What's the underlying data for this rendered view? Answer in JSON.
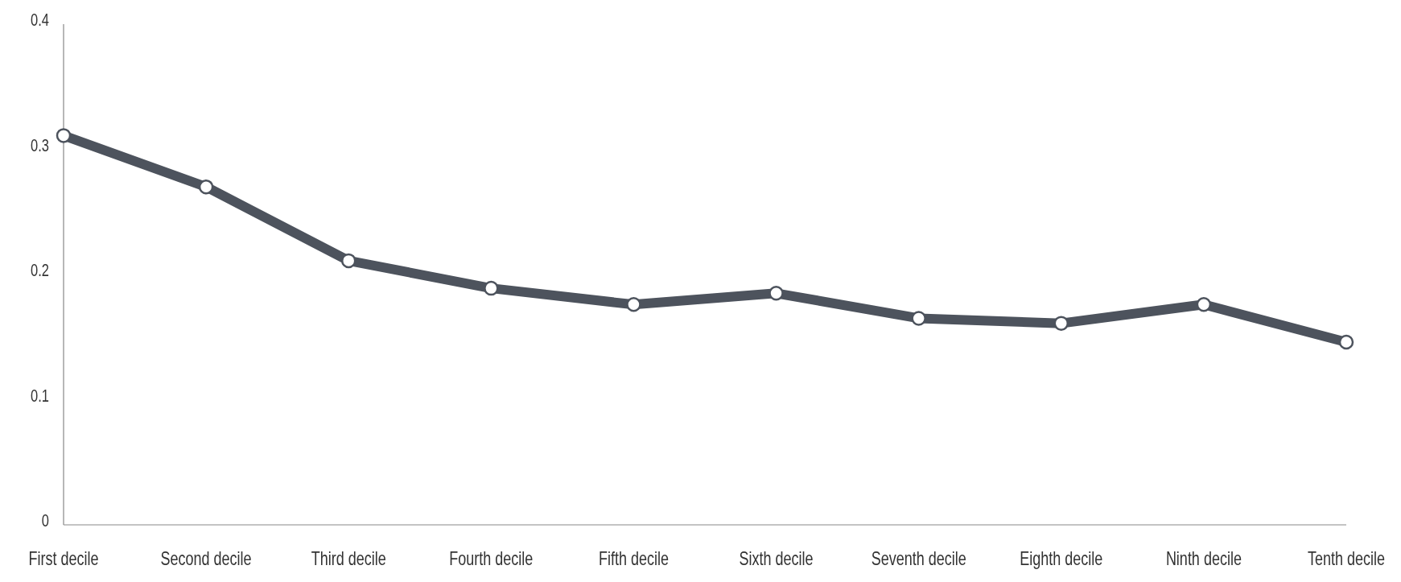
{
  "chart_data": {
    "type": "line",
    "categories": [
      "First decile",
      "Second decile",
      "Third decile",
      "Fourth decile",
      "Fifth decile",
      "Sixth decile",
      "Seventh decile",
      "Eighth decile",
      "Ninth decile",
      "Tenth decile"
    ],
    "series": [
      {
        "color": "#4d535d",
        "values": [
          0.311,
          0.27,
          0.211,
          0.189,
          0.176,
          0.185,
          0.165,
          0.161,
          0.176,
          0.146
        ]
      }
    ],
    "ylim": [
      0,
      0.4
    ],
    "yticks": [
      0,
      0.1,
      0.2,
      0.3,
      0.4
    ],
    "grid": false,
    "marker": "circle",
    "line_style": "solid"
  }
}
